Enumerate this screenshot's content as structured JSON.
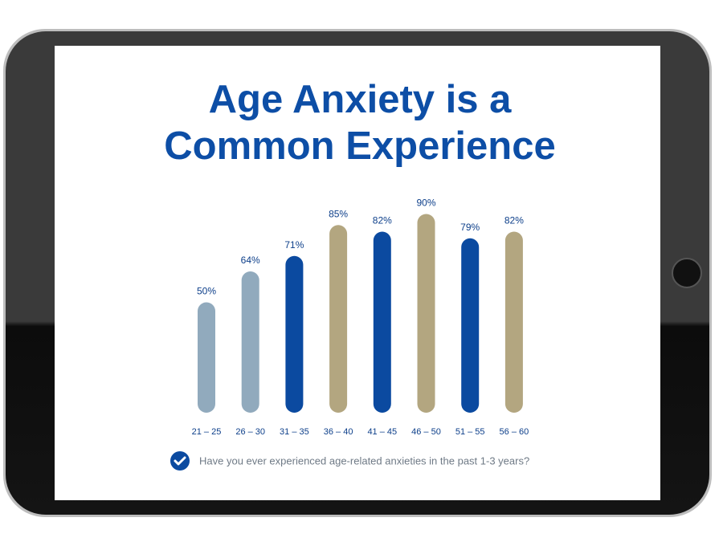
{
  "chart_data": {
    "type": "bar",
    "title": [
      "Age Anxiety is a",
      "Common Experience"
    ],
    "categories": [
      "21 – 25",
      "26 – 30",
      "31 – 35",
      "36 – 40",
      "41 – 45",
      "46 – 50",
      "51 – 55",
      "56 – 60"
    ],
    "values": [
      50,
      64,
      71,
      85,
      82,
      90,
      79,
      82
    ],
    "value_labels": [
      "50%",
      "64%",
      "71%",
      "85%",
      "82%",
      "90%",
      "79%",
      "82%"
    ],
    "colors": [
      "#91aabd",
      "#91aabd",
      "#0b4aa0",
      "#b3a680",
      "#0b4aa0",
      "#b3a680",
      "#0b4aa0",
      "#b3a680"
    ],
    "annotation": "Have you ever experienced age-related anxieties in the past 1-3 years?"
  }
}
